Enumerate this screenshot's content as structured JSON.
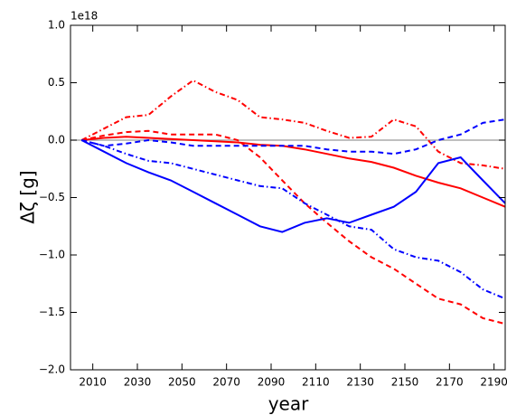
{
  "chart_data": {
    "type": "line",
    "xlabel": "year",
    "ylabel": "Δζ [g]",
    "offset_text": "1e18",
    "x": [
      2005,
      2015,
      2025,
      2035,
      2045,
      2055,
      2065,
      2075,
      2085,
      2095,
      2105,
      2115,
      2125,
      2135,
      2145,
      2155,
      2165,
      2175,
      2185,
      2195
    ],
    "xlim": [
      2000,
      2195
    ],
    "xticks": [
      2010,
      2030,
      2050,
      2070,
      2090,
      2110,
      2130,
      2150,
      2170,
      2190
    ],
    "ylim": [
      -2.0,
      1.0
    ],
    "yticks": [
      {
        "value": -2.0,
        "label": "−2.0"
      },
      {
        "value": -1.5,
        "label": "−1.5"
      },
      {
        "value": -1.0,
        "label": "−1.0"
      },
      {
        "value": -0.5,
        "label": "−0.5"
      },
      {
        "value": 0.0,
        "label": "0.0"
      },
      {
        "value": 0.5,
        "label": "0.5"
      },
      {
        "value": 1.0,
        "label": "1.0"
      }
    ],
    "hline": 0,
    "hline_color": "#999999",
    "series": [
      {
        "color": "#ff0000",
        "linestyle": "solid",
        "values": [
          0,
          0.02,
          0.03,
          0.02,
          0.01,
          0.0,
          -0.01,
          -0.02,
          -0.04,
          -0.05,
          -0.08,
          -0.12,
          -0.16,
          -0.19,
          -0.24,
          -0.31,
          -0.37,
          -0.42,
          -0.5,
          -0.58
        ]
      },
      {
        "color": "#ff0000",
        "linestyle": "dashed",
        "values": [
          0,
          0.04,
          0.07,
          0.08,
          0.05,
          0.05,
          0.05,
          0.0,
          -0.15,
          -0.35,
          -0.55,
          -0.72,
          -0.88,
          -1.02,
          -1.12,
          -1.25,
          -1.38,
          -1.43,
          -1.55,
          -1.6
        ]
      },
      {
        "color": "#ff0000",
        "linestyle": "dashdot",
        "values": [
          0,
          0.1,
          0.2,
          0.22,
          0.38,
          0.52,
          0.42,
          0.35,
          0.2,
          0.18,
          0.15,
          0.08,
          0.02,
          0.03,
          0.18,
          0.12,
          -0.1,
          -0.2,
          -0.22,
          -0.25
        ]
      },
      {
        "color": "#0000ff",
        "linestyle": "solid",
        "values": [
          0,
          -0.1,
          -0.2,
          -0.28,
          -0.35,
          -0.45,
          -0.55,
          -0.65,
          -0.75,
          -0.8,
          -0.72,
          -0.68,
          -0.72,
          -0.65,
          -0.58,
          -0.45,
          -0.2,
          -0.15,
          -0.35,
          -0.55
        ]
      },
      {
        "color": "#0000ff",
        "linestyle": "dashed",
        "values": [
          0,
          -0.05,
          -0.03,
          0.0,
          -0.02,
          -0.05,
          -0.05,
          -0.05,
          -0.05,
          -0.05,
          -0.05,
          -0.08,
          -0.1,
          -0.1,
          -0.12,
          -0.08,
          0.0,
          0.05,
          0.15,
          0.18
        ]
      },
      {
        "color": "#0000ff",
        "linestyle": "dashdot",
        "values": [
          0,
          -0.05,
          -0.12,
          -0.18,
          -0.2,
          -0.25,
          -0.3,
          -0.35,
          -0.4,
          -0.42,
          -0.55,
          -0.65,
          -0.75,
          -0.78,
          -0.95,
          -1.02,
          -1.05,
          -1.15,
          -1.3,
          -1.38
        ]
      }
    ]
  }
}
